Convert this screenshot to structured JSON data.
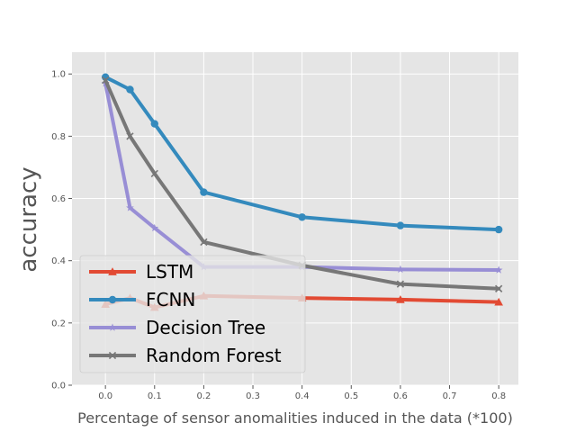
{
  "chart_data": {
    "type": "line",
    "title": "",
    "xlabel": "Percentage of sensor anomalities induced in the data (*100)",
    "ylabel": "accuracy",
    "x": [
      0.0,
      0.05,
      0.1,
      0.2,
      0.4,
      0.6,
      0.8
    ],
    "xlim": [
      -0.068,
      0.84
    ],
    "ylim": [
      0.0,
      1.07
    ],
    "xticks": [
      "0.0",
      "0.1",
      "0.2",
      "0.3",
      "0.4",
      "0.5",
      "0.6",
      "0.7",
      "0.8"
    ],
    "yticks": [
      "0.0",
      "0.2",
      "0.4",
      "0.6",
      "0.8",
      "1.0"
    ],
    "grid": true,
    "legend_position": "lower-left",
    "style": "ggplot",
    "series": [
      {
        "name": "LSTM",
        "color": "#E24A33",
        "marker": "triangle",
        "values": [
          0.26,
          0.28,
          0.25,
          0.287,
          0.28,
          0.275,
          0.267
        ]
      },
      {
        "name": "FCNN",
        "color": "#348ABD",
        "marker": "circle",
        "values": [
          0.99,
          0.95,
          0.84,
          0.62,
          0.54,
          0.513,
          0.5
        ]
      },
      {
        "name": "Decision Tree",
        "color": "#988ED5",
        "marker": "star",
        "values": [
          0.97,
          0.57,
          0.505,
          0.38,
          0.38,
          0.372,
          0.37
        ]
      },
      {
        "name": "Random Forest",
        "color": "#777777",
        "marker": "x",
        "values": [
          0.98,
          0.8,
          0.68,
          0.46,
          0.385,
          0.325,
          0.31
        ]
      }
    ]
  }
}
